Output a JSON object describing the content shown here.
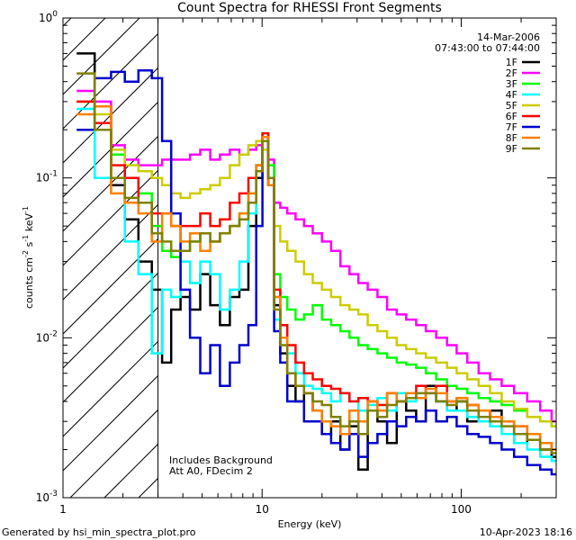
{
  "chart_data": {
    "type": "line",
    "title": "Count Spectra for RHESSI Front Segments",
    "xlabel": "Energy (keV)",
    "ylabel": "counts cm^-2 s^-1 keV^-1",
    "ylabel_parts": {
      "base": "counts cm",
      "exp1": "-2",
      "mid1": " s",
      "exp2": "-1",
      "mid2": " keV",
      "exp3": "-1"
    },
    "x_scale": "log",
    "y_scale": "log",
    "xlim": [
      1.0,
      300
    ],
    "ylim": [
      0.001,
      1.0
    ],
    "x_ticks": [
      {
        "value": 1,
        "label": "1"
      },
      {
        "value": 10,
        "label": "10"
      },
      {
        "value": 100,
        "label": "100"
      }
    ],
    "y_ticks": [
      {
        "value": 0.001,
        "base": "10",
        "exp": "-3"
      },
      {
        "value": 0.01,
        "base": "10",
        "exp": "-2"
      },
      {
        "value": 0.1,
        "base": "10",
        "exp": "-1"
      },
      {
        "value": 1,
        "base": "10",
        "exp": "0"
      }
    ],
    "excluded_region": {
      "from": 1.0,
      "to": 3.0,
      "style": "hatched"
    },
    "date": "14-Mar-2006",
    "time_range": "07:43:00 to 07:44:00",
    "annotation_lines": [
      "Includes Background",
      "Att A0, FDecim 2"
    ],
    "footer_left": "Generated by hsi_min_spectra_plot.pro",
    "footer_right": "10-Apr-2023 18:16",
    "legend_position": "top-right",
    "x": [
      1.3,
      1.6,
      1.9,
      2.2,
      2.6,
      3.0,
      3.3,
      3.7,
      4.1,
      4.6,
      5.2,
      5.8,
      6.5,
      7.3,
      8.1,
      9.0,
      9.7,
      10.4,
      11.1,
      11.9,
      12.8,
      14.0,
      15.5,
      17.0,
      19.0,
      21.0,
      23.5,
      26.0,
      29.0,
      32.0,
      36.0,
      40.0,
      45.0,
      50.0,
      56.0,
      63.0,
      70.0,
      80.0,
      90.0,
      100.0,
      115.0,
      130.0,
      150.0,
      170.0,
      200.0,
      230.0,
      270.0,
      300.0
    ],
    "series": [
      {
        "name": "1F",
        "color": "#000000",
        "values": [
          0.6,
          0.28,
          0.09,
          0.055,
          0.03,
          0.02,
          0.007,
          0.015,
          0.018,
          0.015,
          0.025,
          0.016,
          0.012,
          0.018,
          0.02,
          0.05,
          0.1,
          0.18,
          0.09,
          0.016,
          0.008,
          0.005,
          0.004,
          0.0045,
          0.0035,
          0.0025,
          0.003,
          0.002,
          0.0028,
          0.0015,
          0.0035,
          0.003,
          0.0022,
          0.004,
          0.0035,
          0.003,
          0.005,
          0.004,
          0.0035,
          0.004,
          0.003,
          0.0032,
          0.0035,
          0.003,
          0.0022,
          0.0025,
          0.002,
          0.0018
        ]
      },
      {
        "name": "2F",
        "color": "#ff00ff",
        "values": [
          0.35,
          0.3,
          0.16,
          0.13,
          0.12,
          0.12,
          0.13,
          0.13,
          0.13,
          0.14,
          0.15,
          0.13,
          0.14,
          0.15,
          0.14,
          0.15,
          0.16,
          0.17,
          0.13,
          0.07,
          0.065,
          0.06,
          0.055,
          0.05,
          0.045,
          0.04,
          0.035,
          0.028,
          0.025,
          0.022,
          0.02,
          0.018,
          0.015,
          0.014,
          0.013,
          0.012,
          0.011,
          0.01,
          0.009,
          0.008,
          0.007,
          0.006,
          0.0055,
          0.005,
          0.0045,
          0.004,
          0.0035,
          0.003
        ]
      },
      {
        "name": "3F",
        "color": "#00ff00",
        "values": [
          0.3,
          0.22,
          0.14,
          0.1,
          0.08,
          0.05,
          0.035,
          0.032,
          0.035,
          0.04,
          0.045,
          0.04,
          0.045,
          0.05,
          0.06,
          0.08,
          0.12,
          0.17,
          0.12,
          0.025,
          0.018,
          0.015,
          0.013,
          0.014,
          0.016,
          0.013,
          0.012,
          0.011,
          0.01,
          0.009,
          0.0085,
          0.008,
          0.0075,
          0.007,
          0.0068,
          0.0065,
          0.006,
          0.0055,
          0.005,
          0.0048,
          0.0045,
          0.0042,
          0.004,
          0.0038,
          0.0035,
          0.0032,
          0.003,
          0.0028
        ]
      },
      {
        "name": "4F",
        "color": "#00ffff",
        "values": [
          0.27,
          0.1,
          0.1,
          0.04,
          0.025,
          0.008,
          0.02,
          0.018,
          0.03,
          0.022,
          0.03,
          0.025,
          0.015,
          0.02,
          0.03,
          0.06,
          0.12,
          0.19,
          0.1,
          0.013,
          0.01,
          0.008,
          0.006,
          0.005,
          0.0048,
          0.0045,
          0.004,
          0.0045,
          0.004,
          0.0035,
          0.0038,
          0.0042,
          0.0035,
          0.0045,
          0.004,
          0.0042,
          0.0045,
          0.004,
          0.0035,
          0.0035,
          0.0032,
          0.003,
          0.0028,
          0.0025,
          0.0022,
          0.002,
          0.0018,
          0.0017
        ]
      },
      {
        "name": "5F",
        "color": "#cccc00",
        "values": [
          0.3,
          0.25,
          0.15,
          0.12,
          0.11,
          0.1,
          0.09,
          0.08,
          0.075,
          0.08,
          0.085,
          0.09,
          0.1,
          0.12,
          0.14,
          0.16,
          0.17,
          0.15,
          0.1,
          0.05,
          0.04,
          0.035,
          0.03,
          0.025,
          0.022,
          0.02,
          0.018,
          0.016,
          0.015,
          0.014,
          0.012,
          0.011,
          0.01,
          0.009,
          0.0085,
          0.008,
          0.0075,
          0.007,
          0.0065,
          0.006,
          0.0055,
          0.005,
          0.0045,
          0.004,
          0.0036,
          0.0032,
          0.003,
          0.0028
        ]
      },
      {
        "name": "6F",
        "color": "#ff0000",
        "values": [
          0.3,
          0.22,
          0.12,
          0.1,
          0.07,
          0.06,
          0.06,
          0.05,
          0.05,
          0.05,
          0.06,
          0.05,
          0.055,
          0.07,
          0.08,
          0.1,
          0.12,
          0.19,
          0.1,
          0.02,
          0.012,
          0.009,
          0.007,
          0.006,
          0.0055,
          0.005,
          0.0048,
          0.0045,
          0.004,
          0.0042,
          0.004,
          0.0038,
          0.0045,
          0.004,
          0.0042,
          0.005,
          0.0045,
          0.005,
          0.004,
          0.0042,
          0.0038,
          0.0035,
          0.0032,
          0.003,
          0.0028,
          0.0025,
          0.0022,
          0.002
        ]
      },
      {
        "name": "7F",
        "color": "#0000cc",
        "values": [
          0.2,
          0.42,
          0.46,
          0.4,
          0.47,
          0.42,
          0.17,
          0.06,
          0.02,
          0.01,
          0.006,
          0.009,
          0.005,
          0.007,
          0.009,
          0.012,
          0.05,
          0.18,
          0.09,
          0.011,
          0.007,
          0.004,
          0.004,
          0.003,
          0.003,
          0.0025,
          0.0022,
          0.002,
          0.0025,
          0.0018,
          0.0022,
          0.0025,
          0.003,
          0.0028,
          0.0032,
          0.003,
          0.0035,
          0.003,
          0.0032,
          0.0028,
          0.0025,
          0.0024,
          0.0022,
          0.002,
          0.0018,
          0.0016,
          0.0015,
          0.0014
        ]
      },
      {
        "name": "8F",
        "color": "#ff8000",
        "values": [
          0.25,
          0.28,
          0.08,
          0.07,
          0.06,
          0.04,
          0.06,
          0.05,
          0.04,
          0.045,
          0.035,
          0.04,
          0.045,
          0.05,
          0.06,
          0.08,
          0.12,
          0.18,
          0.09,
          0.018,
          0.01,
          0.006,
          0.005,
          0.0045,
          0.0035,
          0.003,
          0.0028,
          0.0025,
          0.0035,
          0.003,
          0.004,
          0.0035,
          0.0045,
          0.004,
          0.0045,
          0.0042,
          0.0048,
          0.0045,
          0.004,
          0.0042,
          0.0038,
          0.0035,
          0.0032,
          0.003,
          0.0028,
          0.0025,
          0.0022,
          0.002
        ]
      },
      {
        "name": "9F",
        "color": "#808000",
        "values": [
          0.45,
          0.2,
          0.1,
          0.075,
          0.07,
          0.045,
          0.04,
          0.035,
          0.035,
          0.04,
          0.045,
          0.04,
          0.045,
          0.05,
          0.055,
          0.07,
          0.11,
          0.17,
          0.1,
          0.015,
          0.009,
          0.006,
          0.005,
          0.0045,
          0.004,
          0.0038,
          0.0032,
          0.0028,
          0.003,
          0.0025,
          0.0035,
          0.0032,
          0.0038,
          0.004,
          0.0042,
          0.0045,
          0.0045,
          0.004,
          0.0038,
          0.004,
          0.0035,
          0.0032,
          0.003,
          0.0028,
          0.0025,
          0.0023,
          0.002,
          0.0019
        ]
      }
    ]
  }
}
